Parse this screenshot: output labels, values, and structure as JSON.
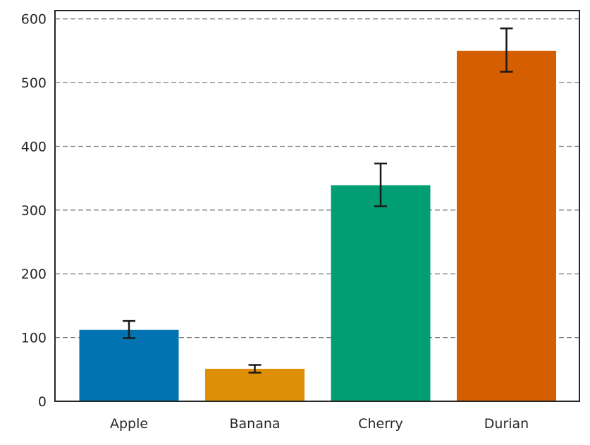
{
  "chart_data": {
    "type": "bar",
    "categories": [
      "Apple",
      "Banana",
      "Cherry",
      "Durian"
    ],
    "values": [
      112,
      51,
      339,
      550
    ],
    "errors": [
      [
        99,
        126
      ],
      [
        45,
        57
      ],
      [
        306,
        373
      ],
      [
        517,
        585
      ]
    ],
    "colors": [
      "#0173b2",
      "#de8f05",
      "#029e73",
      "#d55e00"
    ],
    "ylim": [
      0,
      613
    ],
    "yticks": [
      0,
      100,
      200,
      300,
      400,
      500,
      600
    ],
    "ytick_labels": [
      "0",
      "100",
      "200",
      "300",
      "400",
      "500",
      "600"
    ],
    "grid": "y-dashed",
    "legend": "none",
    "title": "",
    "xlabel": "",
    "ylabel": ""
  }
}
